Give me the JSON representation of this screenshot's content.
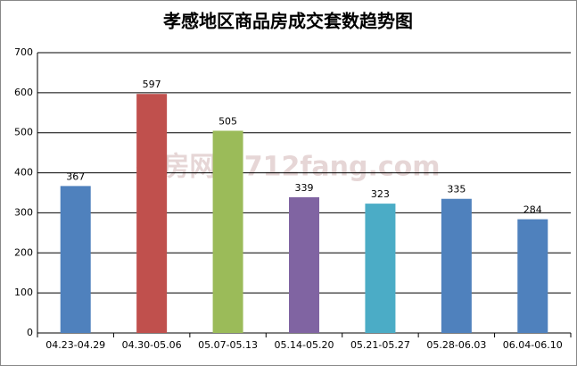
{
  "chart_data": {
    "type": "bar",
    "title": "孝感地区商品房成交套数趋势图",
    "watermark": "孝房网 0712fang.com",
    "categories": [
      "04.23-04.29",
      "04.30-05.06",
      "05.07-05.13",
      "05.14-05.20",
      "05.21-05.27",
      "05.28-06.03",
      "06.04-06.10"
    ],
    "values": [
      367,
      597,
      505,
      339,
      323,
      335,
      284
    ],
    "colors": [
      "#4f81bd",
      "#c0504d",
      "#9bbb59",
      "#8064a2",
      "#4bacc6",
      "#4f81bd",
      "#4f81bd"
    ],
    "ylim": [
      0,
      700
    ],
    "yticks": [
      0,
      100,
      200,
      300,
      400,
      500,
      600,
      700
    ],
    "grid": true
  }
}
